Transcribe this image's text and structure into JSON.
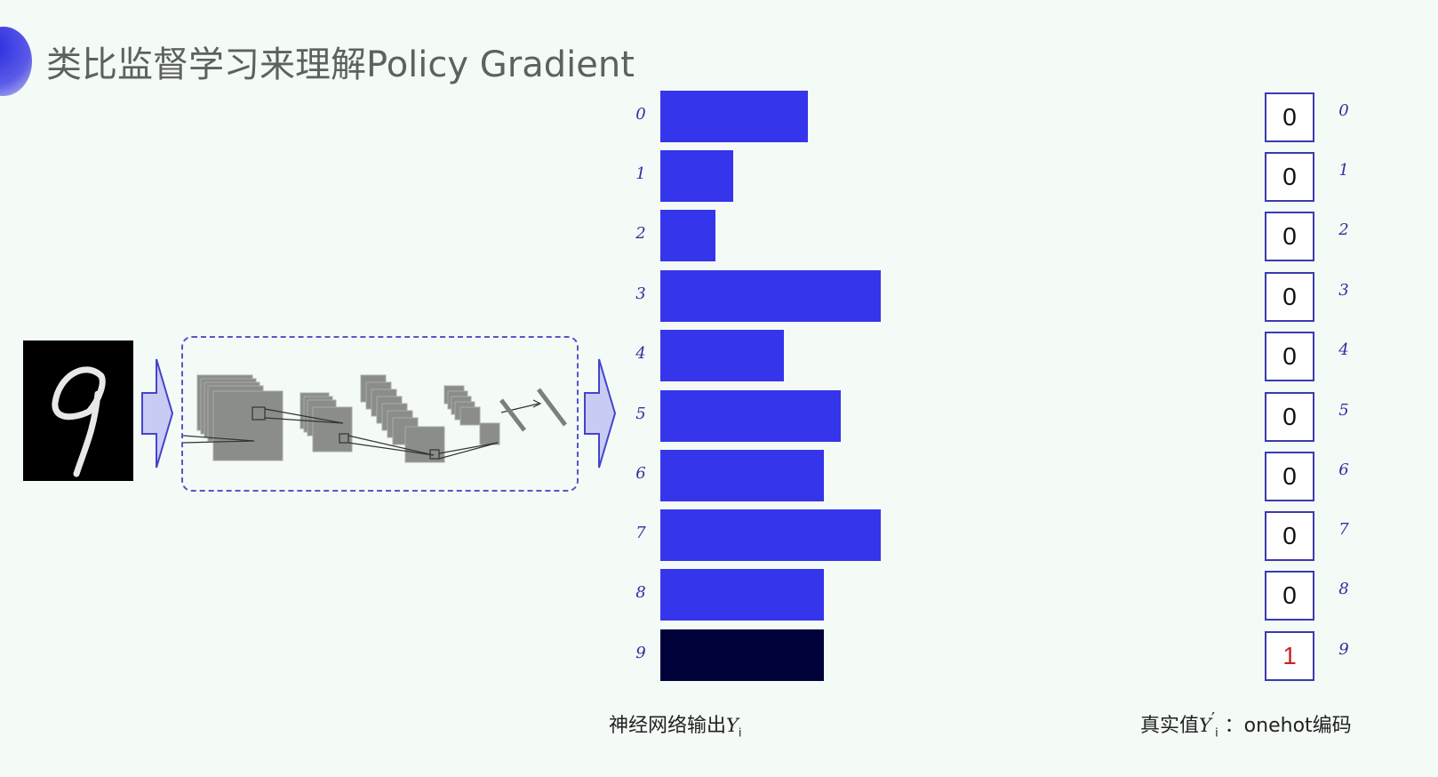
{
  "title": "类比监督学习来理解Policy Gradient",
  "input_image": {
    "digit": "9"
  },
  "network_output": {
    "caption": "神经网络输出",
    "caption_var": "Y",
    "caption_sub": "i",
    "bar_color": "#3535ec",
    "highlight_color": "#02023a",
    "rows": [
      {
        "label": "0",
        "value": 0.67
      },
      {
        "label": "1",
        "value": 0.33
      },
      {
        "label": "2",
        "value": 0.25
      },
      {
        "label": "3",
        "value": 1.0
      },
      {
        "label": "4",
        "value": 0.56
      },
      {
        "label": "5",
        "value": 0.82
      },
      {
        "label": "6",
        "value": 0.74
      },
      {
        "label": "7",
        "value": 1.0
      },
      {
        "label": "8",
        "value": 0.74
      },
      {
        "label": "9",
        "value": 0.74,
        "highlight": true
      }
    ]
  },
  "ground_truth": {
    "caption_prefix": "真实值",
    "caption_var": "Y",
    "caption_sup": "′",
    "caption_sub": "i",
    "caption_suffix": " ：onehot编码",
    "hot_color": "#cc2222",
    "rows": [
      {
        "label": "0",
        "value": "0"
      },
      {
        "label": "1",
        "value": "0"
      },
      {
        "label": "2",
        "value": "0"
      },
      {
        "label": "3",
        "value": "0"
      },
      {
        "label": "4",
        "value": "0"
      },
      {
        "label": "5",
        "value": "0"
      },
      {
        "label": "6",
        "value": "0"
      },
      {
        "label": "7",
        "value": "0"
      },
      {
        "label": "8",
        "value": "0"
      },
      {
        "label": "9",
        "value": "1",
        "hot": true
      }
    ]
  }
}
